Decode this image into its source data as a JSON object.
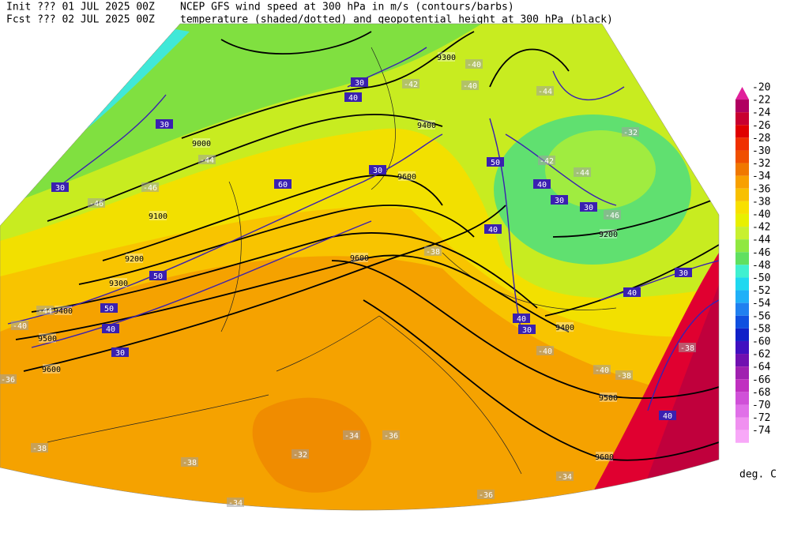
{
  "header": {
    "init": "Init  ??? 01 JUL 2025 00Z",
    "fcst": "Fcst ??? 02 JUL 2025 00Z",
    "title1": "NCEP GFS wind speed at 300 hPa in m/s (contours/barbs)",
    "title2": "temperature (shaded/dotted) and geopotential height at 300 hPa (black)"
  },
  "colorbar": {
    "unit": "deg. C",
    "levels": [
      -20,
      -22,
      -24,
      -26,
      -28,
      -30,
      -32,
      -34,
      -36,
      -38,
      -40,
      -42,
      -44,
      -46,
      -48,
      -50,
      -52,
      -54,
      -56,
      -58,
      -60,
      -62,
      -64,
      -66,
      -68,
      -70,
      -72,
      -74
    ],
    "colors": [
      "#e0209a",
      "#b00060",
      "#c80030",
      "#e00000",
      "#f03000",
      "#f05000",
      "#f07800",
      "#f8a000",
      "#f8c000",
      "#f8e000",
      "#e8f000",
      "#c8f030",
      "#90e840",
      "#60e060",
      "#40f0d0",
      "#20d8f0",
      "#20b0f8",
      "#2080f0",
      "#1050e0",
      "#1020c8",
      "#4010c0",
      "#7010b0",
      "#a020b0",
      "#c030c0",
      "#d050d8",
      "#e070e8",
      "#f090f0",
      "#f8a8f8"
    ]
  },
  "map_labels": {
    "heights": [
      "9300",
      "9400",
      "9000",
      "9100",
      "9200",
      "9300",
      "9400",
      "9500",
      "9600",
      "9600",
      "9600",
      "9200",
      "9400",
      "9500",
      "9600"
    ],
    "winds": [
      "30",
      "30",
      "30",
      "40",
      "60",
      "50",
      "50",
      "40",
      "30",
      "30",
      "50",
      "40",
      "30",
      "30",
      "40",
      "40",
      "30",
      "30",
      "40",
      "40"
    ],
    "temps": [
      "-46",
      "-44",
      "-46",
      "-44",
      "-40",
      "-38",
      "-36",
      "-38",
      "-34",
      "-36",
      "-32",
      "-34",
      "-36",
      "-34",
      "-38",
      "-40",
      "-38",
      "-40",
      "-38",
      "-44",
      "-42",
      "-44",
      "-32",
      "-46",
      "-40",
      "-40",
      "-42"
    ]
  }
}
